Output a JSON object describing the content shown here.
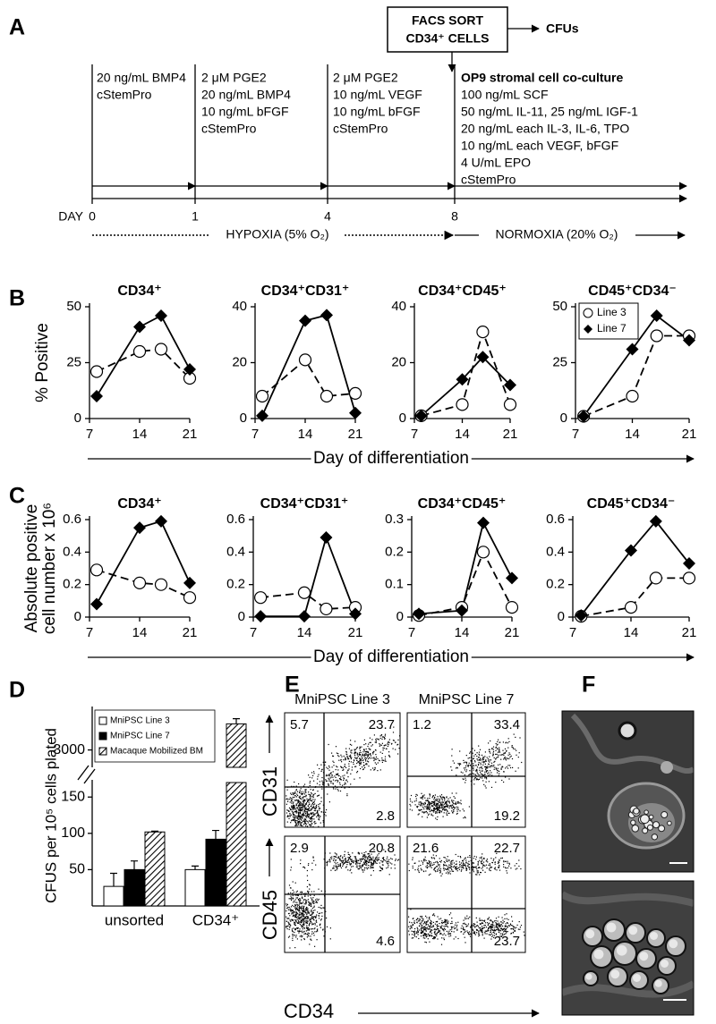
{
  "panel_labels": [
    "A",
    "B",
    "C",
    "D",
    "E",
    "F"
  ],
  "timeline": {
    "sort_box": [
      "FACS SORT",
      "CD34⁺ CELLS"
    ],
    "sort_output": "CFUs",
    "stages": [
      [
        "20 ng/mL BMP4",
        "cStemPro"
      ],
      [
        "2 μM PGE2",
        "20 ng/mL BMP4",
        "10 ng/mL bFGF",
        "cStemPro"
      ],
      [
        "2 μM PGE2",
        "10 ng/mL VEGF",
        "10 ng/mL bFGF",
        "cStemPro"
      ],
      [
        "OP9 stromal cell co-culture",
        "100 ng/mL SCF",
        "50 ng/mL IL-11, 25 ng/mL IGF-1",
        "20 ng/mL each IL-3, IL-6, TPO",
        "10 ng/mL each VEGF, bFGF",
        "4 U/mL EPO",
        "cStemPro"
      ]
    ],
    "day_label": "DAY",
    "days": [
      0,
      1,
      4,
      8
    ],
    "hypoxia": "HYPOXIA (5% O₂)",
    "normoxia": "NORMOXIA (20% O₂)"
  },
  "chart_data": [
    {
      "type": "line",
      "title": "CD34⁺",
      "ylabel": "% Positive",
      "xlabel": "Day of differentiation",
      "x": [
        8,
        14,
        17,
        21
      ],
      "xlim": [
        7,
        21
      ],
      "xticks": [
        7,
        14,
        21
      ],
      "ylim": [
        0,
        50
      ],
      "yticks": [
        0,
        25,
        50
      ],
      "series": [
        {
          "color": "#000000",
          "marker": "circle",
          "dashed": true,
          "values": [
            21,
            30,
            31,
            18
          ]
        },
        {
          "color": "#000000",
          "marker": "diamond",
          "values": [
            10,
            41,
            46,
            22
          ]
        }
      ]
    },
    {
      "type": "line",
      "title": "CD34⁺CD31⁺",
      "x": [
        8,
        14,
        17,
        21
      ],
      "xlim": [
        7,
        21
      ],
      "xticks": [
        7,
        14,
        21
      ],
      "ylim": [
        0,
        40
      ],
      "yticks": [
        0,
        20,
        40
      ],
      "series": [
        {
          "color": "#000000",
          "marker": "circle",
          "dashed": true,
          "values": [
            8,
            21,
            8,
            9
          ]
        },
        {
          "color": "#000000",
          "marker": "diamond",
          "values": [
            1,
            35,
            37,
            2
          ]
        }
      ]
    },
    {
      "type": "line",
      "title": "CD34⁺CD45⁺",
      "x": [
        8,
        14,
        17,
        21
      ],
      "xlim": [
        7,
        21
      ],
      "xticks": [
        7,
        14,
        21
      ],
      "ylim": [
        0,
        40
      ],
      "yticks": [
        0,
        20,
        40
      ],
      "series": [
        {
          "color": "#000000",
          "marker": "circle",
          "dashed": true,
          "values": [
            1,
            5,
            31,
            5
          ]
        },
        {
          "color": "#000000",
          "marker": "diamond",
          "values": [
            1,
            14,
            22,
            12
          ]
        }
      ]
    },
    {
      "type": "line",
      "title": "CD45⁺CD34⁻",
      "legend": "upper left",
      "x": [
        8,
        14,
        17,
        21
      ],
      "xlim": [
        7,
        21
      ],
      "xticks": [
        7,
        14,
        21
      ],
      "ylim": [
        0,
        50
      ],
      "yticks": [
        0,
        25,
        50
      ],
      "series": [
        {
          "name": "Line 3",
          "color": "#000000",
          "marker": "circle",
          "dashed": true,
          "values": [
            1,
            10,
            37,
            37
          ]
        },
        {
          "name": "Line 7",
          "color": "#000000",
          "marker": "diamond",
          "values": [
            1,
            31,
            46,
            35
          ]
        }
      ]
    },
    {
      "type": "line",
      "title": "CD34⁺",
      "ylabel": [
        "Absolute positive",
        "cell number x 10⁶"
      ],
      "xlabel": "Day of differentiation",
      "x": [
        8,
        14,
        17,
        21
      ],
      "xlim": [
        7,
        21
      ],
      "xticks": [
        7,
        14,
        21
      ],
      "ylim": [
        0,
        0.6
      ],
      "yticks": [
        0,
        0.2,
        0.4,
        0.6
      ],
      "series": [
        {
          "color": "#000000",
          "marker": "circle",
          "dashed": true,
          "values": [
            0.29,
            0.21,
            0.2,
            0.12
          ]
        },
        {
          "color": "#000000",
          "marker": "diamond",
          "values": [
            0.08,
            0.55,
            0.59,
            0.21
          ]
        }
      ]
    },
    {
      "type": "line",
      "title": "CD34⁺CD31⁺",
      "x": [
        8,
        14,
        17,
        21
      ],
      "xlim": [
        7,
        21
      ],
      "xticks": [
        7,
        14,
        21
      ],
      "ylim": [
        0,
        0.6
      ],
      "yticks": [
        0,
        0.2,
        0.4,
        0.6
      ],
      "series": [
        {
          "color": "#000000",
          "marker": "circle",
          "dashed": true,
          "values": [
            0.12,
            0.15,
            0.05,
            0.06
          ]
        },
        {
          "color": "#000000",
          "marker": "diamond",
          "values": [
            0.005,
            0.005,
            0.49,
            0.02
          ]
        }
      ]
    },
    {
      "type": "line",
      "title": "CD34⁺CD45⁺",
      "x": [
        8,
        14,
        17,
        21
      ],
      "xlim": [
        7,
        21
      ],
      "xticks": [
        7,
        14,
        21
      ],
      "ylim": [
        0,
        0.3
      ],
      "yticks": [
        0,
        0.1,
        0.2,
        0.3
      ],
      "series": [
        {
          "color": "#000000",
          "marker": "circle",
          "dashed": true,
          "values": [
            0.005,
            0.03,
            0.2,
            0.03
          ]
        },
        {
          "color": "#000000",
          "marker": "diamond",
          "values": [
            0.01,
            0.02,
            0.29,
            0.12
          ]
        }
      ]
    },
    {
      "type": "line",
      "title": "CD45⁺CD34⁻",
      "x": [
        8,
        14,
        17,
        21
      ],
      "xlim": [
        7,
        21
      ],
      "xticks": [
        7,
        14,
        21
      ],
      "ylim": [
        0,
        0.6
      ],
      "yticks": [
        0,
        0.2,
        0.4,
        0.6
      ],
      "series": [
        {
          "color": "#000000",
          "marker": "circle",
          "dashed": true,
          "values": [
            0.005,
            0.06,
            0.24,
            0.24
          ]
        },
        {
          "color": "#000000",
          "marker": "diamond",
          "values": [
            0.01,
            0.41,
            0.59,
            0.33
          ]
        }
      ]
    },
    {
      "type": "bar",
      "ylabel": "CFUS per 10⁵ cells plated",
      "legend": "upper left",
      "categories": [
        "unsorted",
        "CD34⁺"
      ],
      "ylim": [
        0,
        170
      ],
      "yticks": [
        50,
        100,
        150
      ],
      "break": {
        "ylim": [
          2800,
          3500
        ],
        "yticks": [
          3000
        ]
      },
      "series": [
        {
          "name": "MniPSC Line 3",
          "color": "#ffffff",
          "values": [
            27,
            50
          ],
          "errors": [
            18,
            5
          ]
        },
        {
          "name": "MniPSC Line 7",
          "color": "#000000",
          "values": [
            50,
            92
          ],
          "errors": [
            12,
            12
          ]
        },
        {
          "name": "Macaque Mobilized BM",
          "pattern": "hatch",
          "values": [
            102,
            3300
          ],
          "errors": [
            1,
            60
          ]
        }
      ]
    }
  ],
  "flow": {
    "columns": [
      "MniPSC Line 3",
      "MniPSC Line 7"
    ],
    "x_label": "CD34",
    "rows": [
      {
        "label": "CD31",
        "plots": [
          [
            5.7,
            23.7,
            2.8
          ],
          [
            1.2,
            33.4,
            19.2
          ]
        ]
      },
      {
        "label": "CD45",
        "plots": [
          [
            2.9,
            20.8,
            4.6
          ],
          [
            21.6,
            22.7,
            23.7
          ]
        ]
      }
    ]
  }
}
